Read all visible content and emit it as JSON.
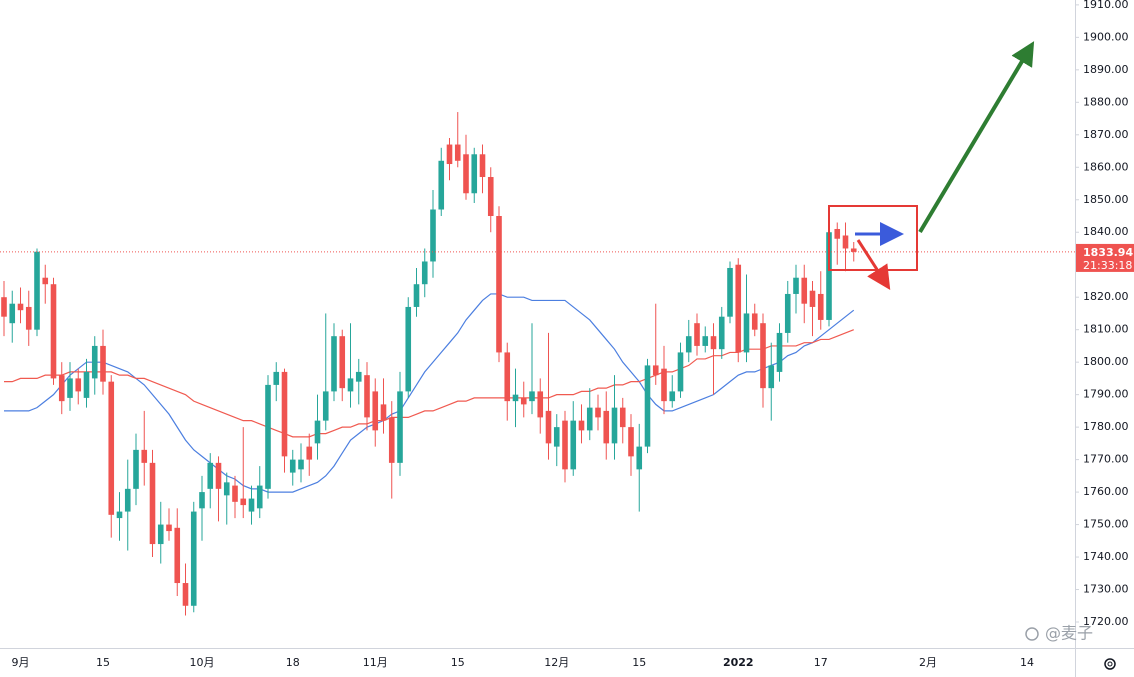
{
  "chart_data": {
    "type": "candlestick",
    "categories": [
      null,
      null,
      "9月",
      null,
      null,
      null,
      null,
      null,
      null,
      null,
      null,
      null,
      "15",
      null,
      null,
      null,
      null,
      null,
      null,
      null,
      null,
      null,
      null,
      null,
      "10月",
      null,
      null,
      null,
      null,
      null,
      null,
      null,
      null,
      null,
      null,
      "18",
      null,
      null,
      null,
      null,
      null,
      null,
      null,
      null,
      null,
      "11月",
      null,
      null,
      null,
      null,
      null,
      null,
      null,
      null,
      null,
      "15",
      null,
      null,
      null,
      null,
      null,
      null,
      null,
      null,
      null,
      null,
      null,
      "12月",
      null,
      null,
      null,
      null,
      null,
      null,
      null,
      null,
      null,
      "15",
      null,
      null,
      null,
      null,
      null,
      null,
      null,
      null,
      null,
      null,
      null,
      "2022",
      null,
      null,
      null,
      null,
      null,
      null,
      null,
      null,
      null,
      "17",
      null,
      null,
      null,
      null,
      null,
      null,
      null,
      null,
      null,
      null,
      null,
      null,
      "2月",
      null,
      null,
      null,
      null,
      null,
      null,
      null,
      null,
      null,
      null,
      null,
      "14",
      null,
      null,
      null,
      null,
      null
    ],
    "open": [
      1820,
      1812,
      1818,
      1817,
      1810,
      1826,
      1824,
      1796,
      1789,
      1795,
      1789,
      1795,
      1805,
      1794,
      1752,
      1754,
      1761,
      1773,
      1769,
      1744,
      1750,
      1749,
      1732,
      1725,
      1755,
      1761,
      1769,
      1759,
      1762,
      1758,
      1754,
      1755,
      1761,
      1793,
      1797,
      1766,
      1767,
      1774,
      1775,
      1782,
      1791,
      1808,
      1791,
      1794,
      1796,
      1791,
      1787,
      1783,
      1769,
      1791,
      1817,
      1824,
      1831,
      1847,
      1867,
      1867,
      1864,
      1852,
      1864,
      1857,
      1845,
      1803,
      1788,
      1789,
      1788,
      1791,
      1785,
      1774,
      1782,
      1767,
      1782,
      1779,
      1786,
      1785,
      1775,
      1786,
      1780,
      1767,
      1774,
      1799,
      1798,
      1788,
      1791,
      1803,
      1812,
      1805,
      1808,
      1804,
      1814,
      1830,
      1803,
      1815,
      1812,
      1792,
      1797,
      1809,
      1821,
      1826,
      1822,
      1821,
      1813,
      1841,
      1839,
      1835,
      null,
      null,
      null,
      null,
      null,
      null,
      null,
      null,
      null,
      null,
      null,
      null,
      null,
      null,
      null,
      null,
      null,
      null,
      null,
      null,
      null,
      null,
      null,
      null,
      null,
      null
    ],
    "high": [
      1825,
      1822,
      1823,
      1822,
      1835,
      1830,
      1826,
      1800,
      1800,
      1798,
      1801,
      1808,
      1810,
      1796,
      1760,
      1770,
      1778,
      1785,
      1773,
      1757,
      1755,
      1755,
      1738,
      1757,
      1765,
      1772,
      1771,
      1766,
      1765,
      1780,
      1762,
      1768,
      1796,
      1800,
      1798,
      1773,
      1775,
      1778,
      1790,
      1815,
      1812,
      1810,
      1812,
      1801,
      1800,
      1795,
      1795,
      1788,
      1797,
      1820,
      1829,
      1835,
      1853,
      1866,
      1869,
      1877,
      1870,
      1866,
      1867,
      1860,
      1848,
      1806,
      1798,
      1794,
      1812,
      1795,
      1809,
      1784,
      1785,
      1788,
      1787,
      1792,
      1790,
      1791,
      1796,
      1789,
      1784,
      1781,
      1801,
      1818,
      1805,
      1796,
      1806,
      1813,
      1815,
      1811,
      1812,
      1817,
      1831,
      1832,
      1827,
      1818,
      1815,
      1806,
      1812,
      1825,
      1830,
      1830,
      1825,
      1828,
      1842,
      1843,
      1843,
      1837,
      null,
      null,
      null,
      null,
      null,
      null,
      null,
      null,
      null,
      null,
      null,
      null,
      null,
      null,
      null,
      null,
      null,
      null,
      null,
      null,
      null,
      null,
      null,
      null,
      null,
      null
    ],
    "low": [
      1808,
      1806,
      1812,
      1805,
      1808,
      1818,
      1793,
      1784,
      1785,
      1787,
      1786,
      1790,
      1790,
      1746,
      1745,
      1742,
      1756,
      1762,
      1740,
      1738,
      1745,
      1728,
      1722,
      1723,
      1745,
      1755,
      1751,
      1750,
      1752,
      1752,
      1750,
      1752,
      1758,
      1788,
      1766,
      1762,
      1763,
      1765,
      1770,
      1779,
      1788,
      1788,
      1786,
      1787,
      1779,
      1774,
      1778,
      1758,
      1765,
      1789,
      1814,
      1820,
      1826,
      1845,
      1856,
      1860,
      1850,
      1849,
      1852,
      1840,
      1800,
      1782,
      1780,
      1783,
      1784,
      1778,
      1770,
      1768,
      1763,
      1765,
      1775,
      1776,
      1779,
      1770,
      1770,
      1775,
      1765,
      1754,
      1772,
      1793,
      1784,
      1786,
      1789,
      1800,
      1802,
      1803,
      1790,
      1801,
      1812,
      1800,
      1800,
      1808,
      1786,
      1782,
      1794,
      1806,
      1815,
      1812,
      1808,
      1810,
      1811,
      1830,
      1828,
      1831,
      null,
      null,
      null,
      null,
      null,
      null,
      null,
      null,
      null,
      null,
      null,
      null,
      null,
      null,
      null,
      null,
      null,
      null,
      null,
      null,
      null,
      null,
      null,
      null,
      null,
      null
    ],
    "close": [
      1814,
      1818,
      1816,
      1810,
      1834,
      1824,
      1795,
      1788,
      1795,
      1791,
      1797,
      1805,
      1794,
      1753,
      1754,
      1761,
      1773,
      1769,
      1744,
      1750,
      1748,
      1732,
      1725,
      1754,
      1760,
      1769,
      1761,
      1763,
      1757,
      1756,
      1758,
      1762,
      1793,
      1797,
      1771,
      1770,
      1770,
      1770,
      1782,
      1791,
      1808,
      1792,
      1795,
      1797,
      1783,
      1779,
      1782,
      1769,
      1791,
      1817,
      1824,
      1831,
      1847,
      1862,
      1861,
      1862,
      1852,
      1864,
      1857,
      1845,
      1803,
      1788,
      1790,
      1787,
      1791,
      1783,
      1775,
      1780,
      1767,
      1782,
      1779,
      1786,
      1783,
      1775,
      1786,
      1780,
      1771,
      1774,
      1799,
      1796,
      1788,
      1791,
      1803,
      1808,
      1805,
      1808,
      1804,
      1814,
      1829,
      1803,
      1815,
      1810,
      1792,
      1799,
      1809,
      1821,
      1826,
      1818,
      1817,
      1813,
      1840,
      1838,
      1835,
      1833.94,
      null,
      null,
      null,
      null,
      null,
      null,
      null,
      null,
      null,
      null,
      null,
      null,
      null,
      null,
      null,
      null,
      null,
      null,
      null,
      null,
      null,
      null,
      null,
      null,
      null,
      null
    ],
    "up_color": "#26a69a",
    "down_color": "#ef5350",
    "series": [
      {
        "color": "#4c7fe0",
        "values": [
          1785,
          1785,
          1785,
          1785,
          1786,
          1788,
          1790,
          1793,
          1796,
          1798,
          1800,
          1800,
          1800,
          1799,
          1798,
          1797,
          1795,
          1793,
          1790,
          1787,
          1784,
          1780,
          1776,
          1773,
          1771,
          1769,
          1767,
          1765,
          1764,
          1762,
          1761,
          1761,
          1760,
          1760,
          1760,
          1760,
          1761,
          1762,
          1763,
          1765,
          1768,
          1772,
          1776,
          1778,
          1780,
          1781,
          1782,
          1784,
          1785,
          1789,
          1793,
          1797,
          1800,
          1803,
          1806,
          1809,
          1813,
          1816,
          1819,
          1821,
          1821,
          1820,
          1820,
          1820,
          1819,
          1819,
          1819,
          1819,
          1819,
          1817,
          1815,
          1813,
          1810,
          1807,
          1804,
          1800,
          1797,
          1794,
          1790,
          1787,
          1785,
          1785,
          1786,
          1787,
          1788,
          1789,
          1790,
          1792,
          1794,
          1796,
          1797,
          1797,
          1798,
          1799,
          1800,
          1802,
          1803,
          1805,
          1806,
          1808,
          1810,
          1812,
          1814,
          1816,
          null,
          null,
          null,
          null,
          null,
          null,
          null,
          null,
          null,
          null,
          null,
          null,
          null,
          null,
          null,
          null,
          null,
          null,
          null,
          null,
          null,
          null,
          null,
          null,
          null,
          null
        ]
      },
      {
        "color": "#f05a50",
        "values": [
          1794,
          1794,
          1795,
          1795,
          1795,
          1796,
          1796,
          1796,
          1797,
          1797,
          1797,
          1797,
          1797,
          1797,
          1796,
          1796,
          1795,
          1795,
          1794,
          1793,
          1792,
          1791,
          1790,
          1788,
          1787,
          1786,
          1785,
          1784,
          1783,
          1782,
          1782,
          1781,
          1780,
          1779,
          1778,
          1777,
          1777,
          1777,
          1778,
          1778,
          1779,
          1780,
          1780,
          1781,
          1781,
          1782,
          1782,
          1783,
          1783,
          1783,
          1784,
          1785,
          1785,
          1786,
          1787,
          1788,
          1788,
          1789,
          1789,
          1789,
          1789,
          1789,
          1789,
          1789,
          1789,
          1789,
          1789,
          1790,
          1790,
          1790,
          1791,
          1791,
          1792,
          1792,
          1793,
          1793,
          1794,
          1794,
          1795,
          1796,
          1797,
          1797,
          1798,
          1799,
          1801,
          1801,
          1802,
          1802,
          1803,
          1803,
          1804,
          1804,
          1804,
          1805,
          1805,
          1805,
          1805,
          1806,
          1806,
          1807,
          1807,
          1808,
          1809,
          1810,
          null,
          null,
          null,
          null,
          null,
          null,
          null,
          null,
          null,
          null,
          null,
          null,
          null,
          null,
          null,
          null,
          null,
          null,
          null,
          null,
          null,
          null,
          null,
          null,
          null,
          null
        ]
      }
    ],
    "ylim": [
      1712,
      1911.5
    ],
    "yticks": [
      {
        "value": 1720,
        "label": "1720.00"
      },
      {
        "value": 1730,
        "label": "1730.00"
      },
      {
        "value": 1740,
        "label": "1740.00"
      },
      {
        "value": 1750,
        "label": "1750.00"
      },
      {
        "value": 1760,
        "label": "1760.00"
      },
      {
        "value": 1770,
        "label": "1770.00"
      },
      {
        "value": 1780,
        "label": "1780.00"
      },
      {
        "value": 1790,
        "label": "1790.00"
      },
      {
        "value": 1800,
        "label": "1800.00"
      },
      {
        "value": 1810,
        "label": "1810.00"
      },
      {
        "value": 1820,
        "label": "1820.00"
      },
      {
        "value": 1830,
        "label": "1830.00"
      },
      {
        "value": 1840,
        "label": "1840.00"
      },
      {
        "value": 1850,
        "label": "1850.00"
      },
      {
        "value": 1860,
        "label": "1860.00"
      },
      {
        "value": 1870,
        "label": "1870.00"
      },
      {
        "value": 1880,
        "label": "1880.00"
      },
      {
        "value": 1890,
        "label": "1890.00"
      },
      {
        "value": 1900,
        "label": "1900.00"
      },
      {
        "value": 1910,
        "label": "1910.00"
      }
    ],
    "grid": false,
    "countdown": "21:33:18",
    "watermark": "@麦子"
  }
}
